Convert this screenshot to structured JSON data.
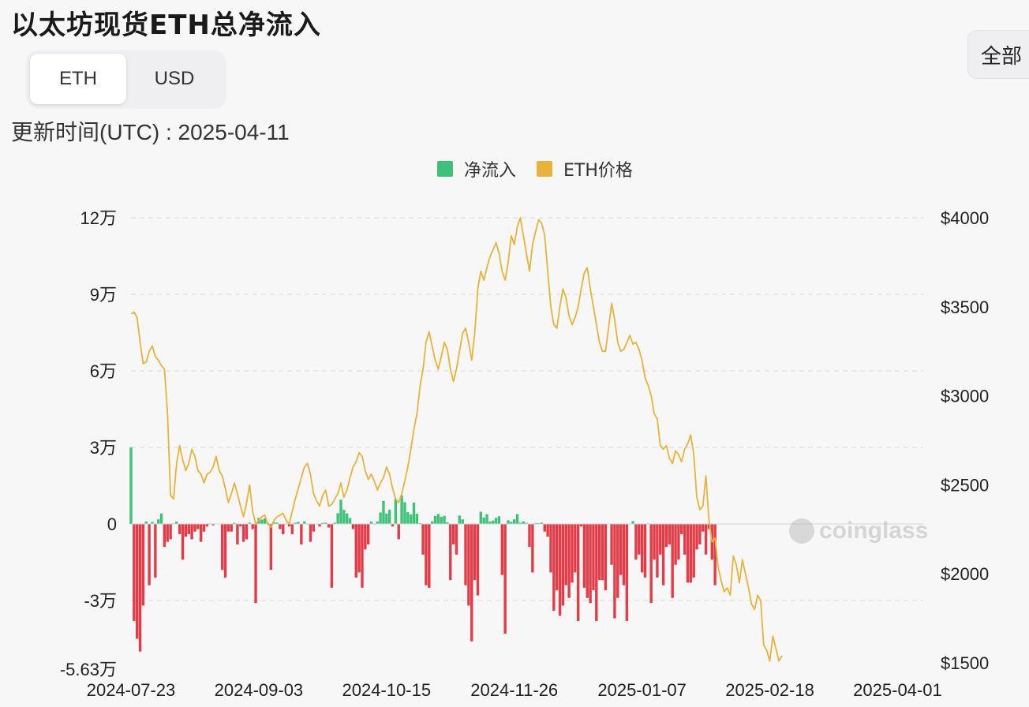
{
  "header": {
    "title": "以太坊现货ETH总净流入",
    "update_time": "更新时间(UTC) : 2025-04-11"
  },
  "unit_toggle": {
    "options": [
      "ETH",
      "USD"
    ],
    "selected": "ETH"
  },
  "range_button": {
    "label": "全部"
  },
  "watermark": {
    "text": "coinglass"
  },
  "colors": {
    "inflow": "#3ec27a",
    "outflow": "#e23c48",
    "price": "#e8b33a",
    "grid": "#e3e3e6"
  },
  "chart_data": {
    "type": "bar+line",
    "legend": [
      "净流入",
      "ETH价格"
    ],
    "legend_placement": "top-center",
    "x_tick_labels": [
      "2024-07-23",
      "2024-09-03",
      "2024-10-15",
      "2024-11-26",
      "2025-01-07",
      "2025-02-18",
      "2025-04-01"
    ],
    "x_range": [
      "2024-07-23",
      "2025-04-11"
    ],
    "y_left": {
      "ticks": [
        -30000,
        0,
        30000,
        60000,
        90000,
        120000
      ],
      "tick_labels": [
        "-3万",
        "0",
        "3万",
        "6万",
        "9万",
        "12万"
      ],
      "min": -56300,
      "min_label": "-5.63万",
      "max": 120000
    },
    "y_right": {
      "ticks": [
        1500,
        2000,
        2500,
        3000,
        3500,
        4000
      ],
      "tick_labels": [
        "$1500",
        "$2000",
        "$2500",
        "$3000",
        "$3500",
        "$4000"
      ],
      "min": 1500,
      "max": 4000
    },
    "grid": "horizontal-dashed",
    "series": [
      {
        "name": "净流入",
        "kind": "bar",
        "start_date": "2024-07-23",
        "values": [
          30000,
          -38000,
          -45000,
          -50000,
          -32000,
          1000,
          -24000,
          800,
          -21000,
          1800,
          4100,
          -9000,
          -7000,
          -6000,
          200,
          900,
          -4000,
          -14000,
          -5000,
          -4000,
          -6000,
          -3000,
          -2000,
          -7000,
          -3000,
          -1000,
          200,
          -500,
          0,
          0,
          -18000,
          -21000,
          -3000,
          -3000,
          400,
          -8000,
          -1000,
          -7000,
          -6000,
          500,
          -2000,
          -31000,
          2300,
          1700,
          2200,
          400,
          -18000,
          700,
          500,
          -2000,
          -4000,
          200,
          -1000,
          -4000,
          500,
          800,
          -8000,
          1000,
          100,
          -7000,
          -3000,
          0,
          -1000,
          400,
          500,
          -1400,
          -25000,
          500,
          4200,
          9500,
          5500,
          4100,
          2300,
          -2000,
          -21000,
          -19000,
          -25000,
          -10000,
          -8000,
          900,
          100,
          1000,
          4500,
          9000,
          4100,
          5600,
          -1000,
          9800,
          -6000,
          11200,
          8500,
          4600,
          3700,
          8400,
          4000,
          300,
          -12000,
          -24000,
          -25000,
          1000,
          3100,
          3900,
          2800,
          3200,
          600,
          -22000,
          -8000,
          -12000,
          3300,
          1800,
          -24000,
          -32000,
          -46000,
          -22000,
          -28000,
          4800,
          2500,
          3800,
          900,
          1300,
          2400,
          3000,
          -20000,
          -43000,
          1400,
          800,
          1800,
          3800,
          500,
          1000,
          400,
          -9000,
          -19000,
          300,
          300,
          500,
          -3000,
          -5000,
          -19000,
          -34000,
          -26000,
          -36000,
          -32000,
          -24000,
          -29000,
          -23000,
          -19000,
          -38000,
          -1000,
          -25000,
          -29000,
          -31000,
          -26000,
          -38000,
          -22000,
          -22000,
          -26000,
          0,
          -16000,
          -37000,
          -29000,
          -20000,
          -24000,
          -38000,
          0,
          1100,
          -14000,
          -12000,
          -19000,
          -21000,
          200,
          -31000,
          -14000,
          -21000,
          -12000,
          -24000,
          -9000,
          -8000,
          -29000,
          -16000,
          -14000,
          -4000,
          -12000,
          -23000,
          -23000,
          -21000,
          -10000,
          -8000,
          -3000,
          -12000,
          -2000,
          -14000,
          -24000
        ]
      },
      {
        "name": "ETH价格",
        "kind": "line",
        "start_date": "2024-07-23",
        "values": [
          3460,
          3470,
          3440,
          3300,
          3180,
          3190,
          3250,
          3280,
          3220,
          3200,
          3170,
          3150,
          2900,
          2440,
          2420,
          2620,
          2720,
          2640,
          2580,
          2620,
          2700,
          2660,
          2580,
          2560,
          2510,
          2560,
          2570,
          2600,
          2660,
          2580,
          2550,
          2480,
          2400,
          2450,
          2510,
          2450,
          2380,
          2320,
          2400,
          2500,
          2350,
          2280,
          2300,
          2320,
          2330,
          2280,
          2260,
          2300,
          2320,
          2330,
          2340,
          2300,
          2280,
          2350,
          2420,
          2480,
          2540,
          2600,
          2620,
          2560,
          2450,
          2410,
          2380,
          2440,
          2470,
          2380,
          2390,
          2420,
          2450,
          2510,
          2430,
          2470,
          2540,
          2600,
          2630,
          2680,
          2660,
          2580,
          2530,
          2560,
          2520,
          2470,
          2510,
          2540,
          2600,
          2560,
          2480,
          2420,
          2400,
          2450,
          2520,
          2600,
          2700,
          2810,
          2900,
          3050,
          3150,
          3300,
          3360,
          3280,
          3200,
          3150,
          3220,
          3300,
          3260,
          3150,
          3080,
          3150,
          3250,
          3350,
          3380,
          3300,
          3200,
          3350,
          3600,
          3700,
          3650,
          3720,
          3780,
          3820,
          3860,
          3800,
          3700,
          3650,
          3750,
          3900,
          3850,
          3950,
          4000,
          3900,
          3800,
          3700,
          3850,
          3920,
          3990,
          3970,
          3900,
          3700,
          3500,
          3400,
          3380,
          3500,
          3600,
          3550,
          3450,
          3400,
          3440,
          3500,
          3600,
          3690,
          3720,
          3600,
          3500,
          3400,
          3300,
          3250,
          3250,
          3380,
          3520,
          3430,
          3300,
          3250,
          3260,
          3300,
          3340,
          3290,
          3300,
          3260,
          3200,
          3100,
          3060,
          3000,
          2900,
          2870,
          2720,
          2700,
          2720,
          2650,
          2620,
          2690,
          2670,
          2630,
          2700,
          2730,
          2780,
          2670,
          2430,
          2360,
          2380,
          2550,
          2300,
          2180,
          2200,
          2040,
          1960,
          1900,
          1920,
          1880,
          2100,
          2050,
          1950,
          2080,
          2000,
          1920,
          1830,
          1800,
          1880,
          1850,
          1600,
          1570,
          1510,
          1650,
          1580,
          1510,
          1540
        ]
      }
    ]
  }
}
